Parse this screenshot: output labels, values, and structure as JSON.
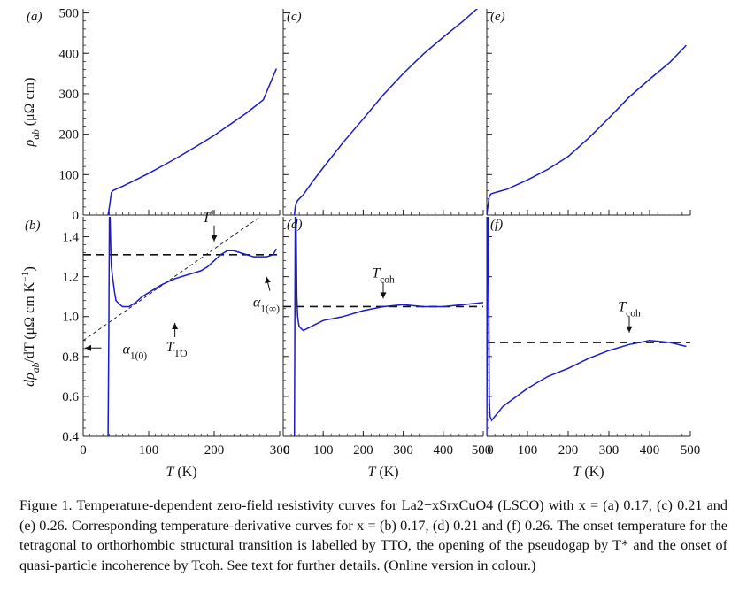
{
  "chart_data": [
    {
      "id": "a",
      "panel_label": "(a)",
      "type": "line",
      "x_range": [
        0,
        300
      ],
      "x_ticks": [],
      "ylim": [
        0,
        510
      ],
      "y_ticks": [
        0,
        100,
        200,
        300,
        400,
        500
      ],
      "y_tick_labels": [
        "0",
        "100",
        "200",
        "300",
        "400",
        "500"
      ],
      "ylabel_parts": [
        "ρ",
        "ab",
        " (μΩ cm)"
      ],
      "series": [
        {
          "color": "#1a1acc",
          "x": [
            38,
            40,
            43,
            45,
            50,
            60,
            80,
            100,
            125,
            150,
            175,
            200,
            225,
            250,
            275,
            295
          ],
          "y": [
            0,
            20,
            55,
            60,
            64,
            71,
            87,
            103,
            125,
            148,
            172,
            197,
            225,
            253,
            285,
            362
          ]
        }
      ],
      "guide_lines": []
    },
    {
      "id": "b",
      "panel_label": "(b)",
      "type": "line",
      "x_range": [
        0,
        300
      ],
      "x_ticks": [
        0,
        100,
        200,
        300
      ],
      "x_tick_labels": [
        "0",
        "100",
        "200",
        "300"
      ],
      "ylim": [
        0.4,
        1.5
      ],
      "y_ticks": [
        0.4,
        0.6,
        0.8,
        1.0,
        1.2,
        1.4
      ],
      "y_tick_labels": [
        "0.4",
        "0.6",
        "0.8",
        "1.0",
        "1.2",
        "1.4"
      ],
      "xlabel_parts": [
        "T",
        " (K)"
      ],
      "ylabel_parts": [
        "dρ",
        "ab",
        "/dT (μΩ cm K",
        "−1",
        ")"
      ],
      "series": [
        {
          "color": "#1a1acc",
          "x": [
            38,
            39,
            40,
            41,
            42,
            43,
            44,
            46,
            48,
            50,
            53,
            56,
            60,
            65,
            70,
            80,
            90,
            100,
            120,
            140,
            160,
            180,
            190,
            200,
            210,
            220,
            230,
            240,
            250,
            260,
            270,
            280,
            290,
            295
          ],
          "y": [
            0.4,
            0.9,
            1.5,
            1.5,
            1.35,
            1.25,
            1.22,
            1.17,
            1.12,
            1.08,
            1.07,
            1.06,
            1.05,
            1.05,
            1.05,
            1.07,
            1.1,
            1.12,
            1.16,
            1.19,
            1.21,
            1.23,
            1.25,
            1.28,
            1.31,
            1.33,
            1.33,
            1.32,
            1.31,
            1.3,
            1.3,
            1.3,
            1.31,
            1.34
          ]
        }
      ],
      "guide_lines": [
        {
          "style": "dashed",
          "x": [
            0,
            300
          ],
          "y": [
            1.31,
            1.31
          ]
        },
        {
          "style": "dashed-fine",
          "x": [
            0,
            270
          ],
          "y": [
            0.88,
            1.5
          ]
        }
      ],
      "annotations": [
        {
          "text_parts": [
            "T",
            "*"
          ],
          "x": 200,
          "y": 1.43
        },
        {
          "text_parts": [
            "T",
            "TO"
          ],
          "x": 140,
          "y": 0.95
        },
        {
          "text_parts": [
            "α",
            "1(∞)"
          ],
          "x": 285,
          "y": 1.12
        },
        {
          "text_parts": [
            "α",
            "1(0)"
          ],
          "x": 25,
          "y": 0.86
        }
      ]
    },
    {
      "id": "c",
      "panel_label": "(c)",
      "type": "line",
      "x_range": [
        0,
        500
      ],
      "x_ticks": [],
      "ylim": [
        0,
        510
      ],
      "y_ticks": [
        0,
        100,
        200,
        300,
        400,
        500
      ],
      "series": [
        {
          "color": "#1a1acc",
          "x": [
            28,
            30,
            33,
            36,
            40,
            50,
            75,
            100,
            150,
            200,
            250,
            300,
            350,
            400,
            450,
            490
          ],
          "y": [
            0,
            20,
            30,
            36,
            40,
            50,
            85,
            117,
            180,
            238,
            297,
            350,
            398,
            440,
            480,
            515
          ]
        }
      ],
      "guide_lines": []
    },
    {
      "id": "d",
      "panel_label": "(d)",
      "type": "line",
      "x_range": [
        0,
        500
      ],
      "x_ticks": [
        0,
        100,
        200,
        300,
        400,
        500
      ],
      "x_tick_labels": [
        "0",
        "100",
        "200",
        "300",
        "400",
        "500"
      ],
      "ylim": [
        0.4,
        1.5
      ],
      "y_ticks": [
        0.4,
        0.6,
        0.8,
        1.0,
        1.2,
        1.4
      ],
      "xlabel_parts": [
        "T",
        " (K)"
      ],
      "series": [
        {
          "color": "#1a1acc",
          "x": [
            28,
            30,
            32,
            34,
            36,
            38,
            40,
            45,
            50,
            60,
            80,
            100,
            150,
            200,
            250,
            300,
            350,
            400,
            450,
            500
          ],
          "y": [
            0.4,
            1.5,
            1.5,
            1.1,
            1.0,
            0.97,
            0.95,
            0.94,
            0.93,
            0.94,
            0.96,
            0.98,
            1.0,
            1.03,
            1.05,
            1.06,
            1.05,
            1.05,
            1.06,
            1.07
          ]
        }
      ],
      "guide_lines": [
        {
          "style": "dashed",
          "x": [
            0,
            500
          ],
          "y": [
            1.05,
            1.05
          ]
        }
      ],
      "annotations": [
        {
          "text_parts": [
            "T",
            "coh"
          ],
          "x": 250,
          "y": 1.17
        }
      ]
    },
    {
      "id": "e",
      "panel_label": "(e)",
      "type": "line",
      "x_range": [
        0,
        500
      ],
      "x_ticks": [],
      "ylim": [
        0,
        510
      ],
      "y_ticks": [
        0,
        100,
        200,
        300,
        400,
        500
      ],
      "series": [
        {
          "color": "#1a1acc",
          "x": [
            0,
            3,
            6,
            10,
            15,
            25,
            50,
            100,
            150,
            200,
            250,
            300,
            350,
            400,
            450,
            490
          ],
          "y": [
            0,
            25,
            45,
            52,
            54,
            57,
            64,
            87,
            113,
            145,
            190,
            240,
            292,
            336,
            378,
            420
          ]
        }
      ],
      "guide_lines": []
    },
    {
      "id": "f",
      "panel_label": "(f)",
      "type": "line",
      "x_range": [
        0,
        500
      ],
      "x_ticks": [
        0,
        100,
        200,
        300,
        400,
        500
      ],
      "x_tick_labels": [
        "0",
        "100",
        "200",
        "300",
        "400",
        "500"
      ],
      "ylim": [
        0.4,
        1.5
      ],
      "y_ticks": [
        0.4,
        0.6,
        0.8,
        1.0,
        1.2,
        1.4
      ],
      "xlabel_parts": [
        "T",
        " (K)"
      ],
      "series": [
        {
          "color": "#1a1acc",
          "x": [
            0,
            2,
            4,
            6,
            8,
            12,
            20,
            40,
            60,
            100,
            150,
            200,
            250,
            300,
            350,
            400,
            450,
            490
          ],
          "y": [
            0.4,
            1.5,
            1.5,
            0.6,
            0.5,
            0.48,
            0.5,
            0.55,
            0.58,
            0.64,
            0.7,
            0.74,
            0.79,
            0.83,
            0.86,
            0.88,
            0.87,
            0.85
          ]
        }
      ],
      "guide_lines": [
        {
          "style": "dashed",
          "x": [
            0,
            500
          ],
          "y": [
            0.87,
            0.87
          ]
        }
      ],
      "annotations": [
        {
          "text_parts": [
            "T",
            "coh"
          ],
          "x": 350,
          "y": 1.0
        }
      ]
    }
  ],
  "caption": "Figure 1. Temperature-dependent zero-field resistivity curves for La2−xSrxCuO4 (LSCO) with x = (a) 0.17, (c) 0.21 and (e) 0.26. Corresponding temperature-derivative curves for x = (b) 0.17, (d) 0.21 and (f) 0.26. The onset temperature for the tetragonal to orthorhombic structural transition is labelled by TTO, the opening of the pseudogap by T* and the onset of quasi-particle incoherence by Tcoh. See text for further details. (Online version in colour.)"
}
